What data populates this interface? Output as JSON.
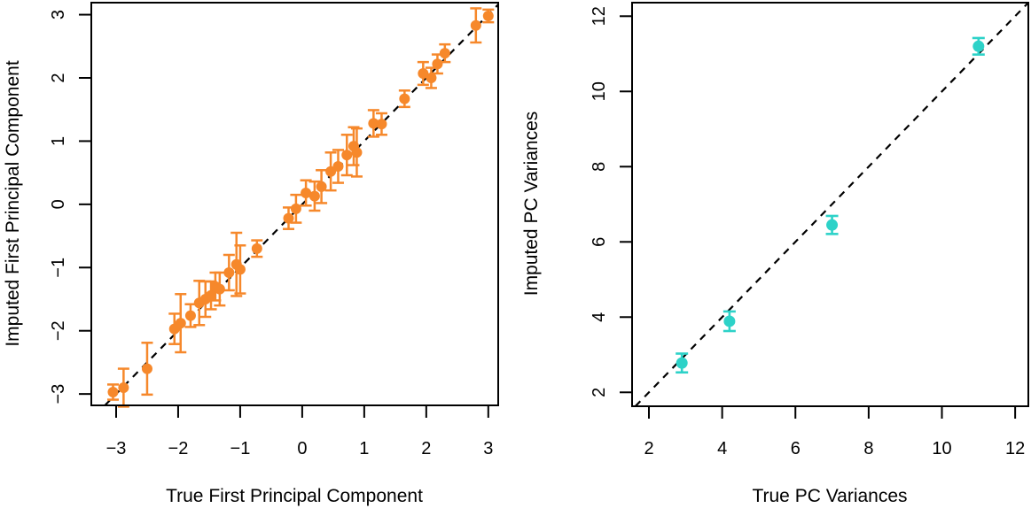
{
  "figure": {
    "type": "side-by-side scatter plots with error bars",
    "background": "#ffffff",
    "axis_color": "#000000",
    "text_color": "#000000"
  },
  "chart_data": [
    {
      "type": "scatter",
      "panel": "left",
      "title": "",
      "xlabel": "True First Principal Component",
      "ylabel": "Imputed First Principal Component",
      "xlim": [
        -3.4,
        3.16
      ],
      "ylim": [
        -3.18,
        3.19
      ],
      "xticks": [
        -3,
        -2,
        -1,
        0,
        1,
        2,
        3
      ],
      "xtick_labels": [
        "−3",
        "−2",
        "−1",
        "0",
        "1",
        "2",
        "3"
      ],
      "yticks": [
        -3,
        -2,
        -1,
        0,
        1,
        2,
        3
      ],
      "ytick_labels": [
        "−3",
        "−2",
        "−1",
        "0",
        "1",
        "2",
        "3"
      ],
      "grid": false,
      "legend": null,
      "point_color": "#F6882B",
      "error_bars": "vertical, same color as points",
      "reference_line": {
        "equation": "y = x",
        "style": "dashed",
        "color": "#000000"
      },
      "points": [
        {
          "x": -3.05,
          "y": -2.97,
          "err": 0.12
        },
        {
          "x": -2.88,
          "y": -2.9,
          "err": 0.3
        },
        {
          "x": -2.5,
          "y": -2.6,
          "err": 0.41
        },
        {
          "x": -2.06,
          "y": -1.97,
          "err": 0.24
        },
        {
          "x": -1.96,
          "y": -1.88,
          "err": 0.46
        },
        {
          "x": -1.8,
          "y": -1.76,
          "err": 0.18
        },
        {
          "x": -1.66,
          "y": -1.56,
          "err": 0.35
        },
        {
          "x": -1.56,
          "y": -1.5,
          "err": 0.28
        },
        {
          "x": -1.47,
          "y": -1.44,
          "err": 0.22
        },
        {
          "x": -1.4,
          "y": -1.3,
          "err": 0.22
        },
        {
          "x": -1.33,
          "y": -1.34,
          "err": 0.26
        },
        {
          "x": -1.18,
          "y": -1.08,
          "err": 0.28
        },
        {
          "x": -1.06,
          "y": -0.95,
          "err": 0.5
        },
        {
          "x": -1.0,
          "y": -1.03,
          "err": 0.38
        },
        {
          "x": -0.73,
          "y": -0.7,
          "err": 0.13
        },
        {
          "x": -0.22,
          "y": -0.22,
          "err": 0.17
        },
        {
          "x": -0.1,
          "y": -0.07,
          "err": 0.22
        },
        {
          "x": 0.06,
          "y": 0.18,
          "err": 0.2
        },
        {
          "x": 0.2,
          "y": 0.13,
          "err": 0.23
        },
        {
          "x": 0.31,
          "y": 0.28,
          "err": 0.26
        },
        {
          "x": 0.46,
          "y": 0.52,
          "err": 0.3
        },
        {
          "x": 0.58,
          "y": 0.6,
          "err": 0.26
        },
        {
          "x": 0.72,
          "y": 0.78,
          "err": 0.32
        },
        {
          "x": 0.83,
          "y": 0.92,
          "err": 0.3
        },
        {
          "x": 0.88,
          "y": 0.82,
          "err": 0.38
        },
        {
          "x": 1.15,
          "y": 1.28,
          "err": 0.21
        },
        {
          "x": 1.28,
          "y": 1.27,
          "err": 0.17
        },
        {
          "x": 1.65,
          "y": 1.67,
          "err": 0.13
        },
        {
          "x": 1.95,
          "y": 2.07,
          "err": 0.18
        },
        {
          "x": 2.08,
          "y": 2.0,
          "err": 0.16
        },
        {
          "x": 2.18,
          "y": 2.22,
          "err": 0.15
        },
        {
          "x": 2.3,
          "y": 2.39,
          "err": 0.14
        },
        {
          "x": 2.8,
          "y": 2.83,
          "err": 0.27
        },
        {
          "x": 3.0,
          "y": 2.98,
          "err": 0.1
        }
      ]
    },
    {
      "type": "scatter",
      "panel": "right",
      "title": "",
      "xlabel": "True PC Variances",
      "ylabel": "Imputed PC Variances",
      "xlim": [
        1.54,
        12.36
      ],
      "ylim": [
        1.63,
        12.36
      ],
      "xticks": [
        2,
        4,
        6,
        8,
        10,
        12
      ],
      "xtick_labels": [
        "2",
        "4",
        "6",
        "8",
        "10",
        "12"
      ],
      "yticks": [
        2,
        4,
        6,
        8,
        10,
        12
      ],
      "ytick_labels": [
        "2",
        "4",
        "6",
        "8",
        "10",
        "12"
      ],
      "grid": false,
      "legend": null,
      "point_color": "#2DD2C8",
      "error_bars": "vertical, same color as points",
      "reference_line": {
        "equation": "y = x",
        "style": "dashed",
        "color": "#000000"
      },
      "points": [
        {
          "x": 2.9,
          "y": 2.78,
          "err": 0.25
        },
        {
          "x": 4.2,
          "y": 3.89,
          "err": 0.26
        },
        {
          "x": 7.0,
          "y": 6.45,
          "err": 0.24
        },
        {
          "x": 11.0,
          "y": 11.2,
          "err": 0.22
        }
      ]
    }
  ]
}
